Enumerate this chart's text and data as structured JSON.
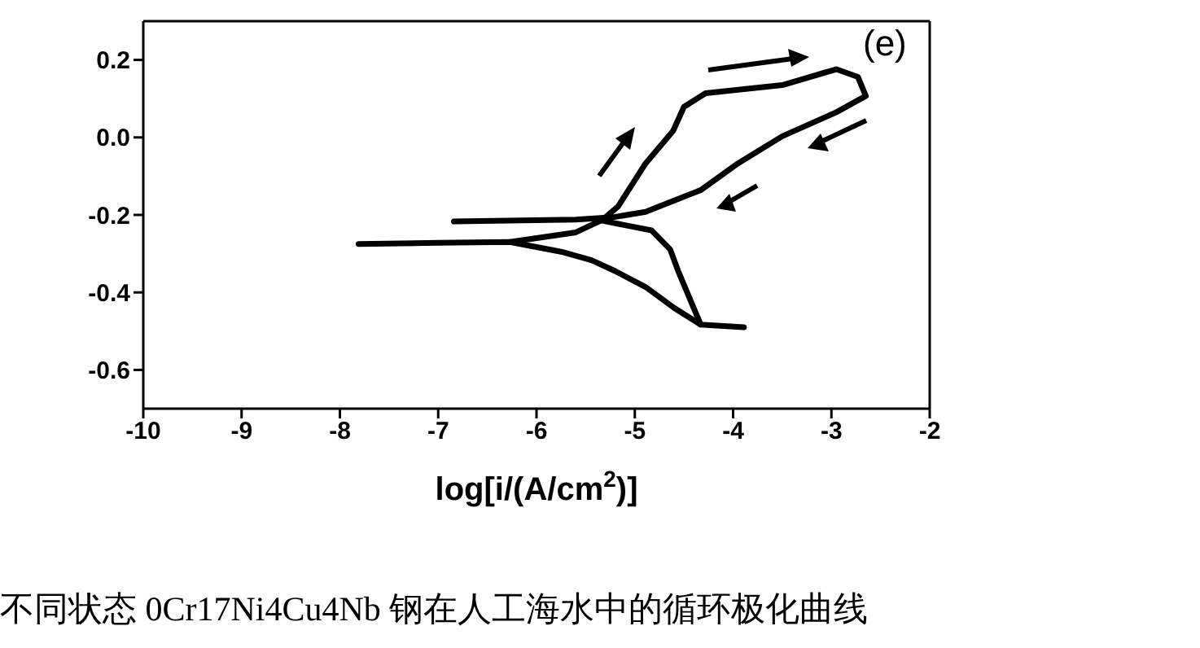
{
  "chart_data": {
    "type": "line",
    "xlabel": "log[i/(A/cm$^{2}$)]",
    "xlim": [
      -10,
      -2
    ],
    "xticks": [
      -10,
      -9,
      -8,
      -7,
      -6,
      -5,
      -4,
      -3,
      -2
    ],
    "ylim": [
      -0.7,
      0.3
    ],
    "yticks": [
      -0.6,
      -0.4,
      -0.2,
      {
        "value": 0,
        "label": "0.0"
      },
      0.2
    ],
    "marker": "none",
    "line_style": "solid",
    "annotations": [
      "(e)",
      "不同状态 0Cr17Ni4Cu4Nb 钢在人工海水中的循环极化曲线"
    ],
    "series": [
      {
        "color": "#000000",
        "x": [
          -3.89,
          -4.33,
          -4.6,
          -4.89,
          -5.2,
          -5.44,
          -5.75,
          -6.0,
          -6.27,
          -7.0,
          -7.81
        ],
        "values": [
          -0.49,
          -0.483,
          -0.44,
          -0.386,
          -0.345,
          -0.317,
          -0.295,
          -0.283,
          -0.27,
          -0.272,
          -0.275
        ]
      },
      {
        "color": "#000000",
        "x": [
          -6.27,
          -5.6,
          -5.33,
          -5.17,
          -4.89,
          -4.61,
          -4.5,
          -4.28,
          -3.5,
          -2.95,
          -2.73,
          -2.65,
          -2.95,
          -3.5,
          -3.95,
          -4.33,
          -4.89,
          -5.22,
          -5.6,
          -6.84
        ],
        "values": [
          -0.27,
          -0.245,
          -0.213,
          -0.178,
          -0.067,
          0.017,
          0.079,
          0.114,
          0.135,
          0.176,
          0.156,
          0.107,
          0.065,
          0.003,
          -0.067,
          -0.136,
          -0.192,
          -0.206,
          -0.212,
          -0.217
        ]
      },
      {
        "color": "#000000",
        "x": [
          -5.33,
          -4.83,
          -4.64,
          -4.56,
          -4.33
        ],
        "values": [
          -0.215,
          -0.24,
          -0.289,
          -0.344,
          -0.483
        ]
      }
    ]
  }
}
